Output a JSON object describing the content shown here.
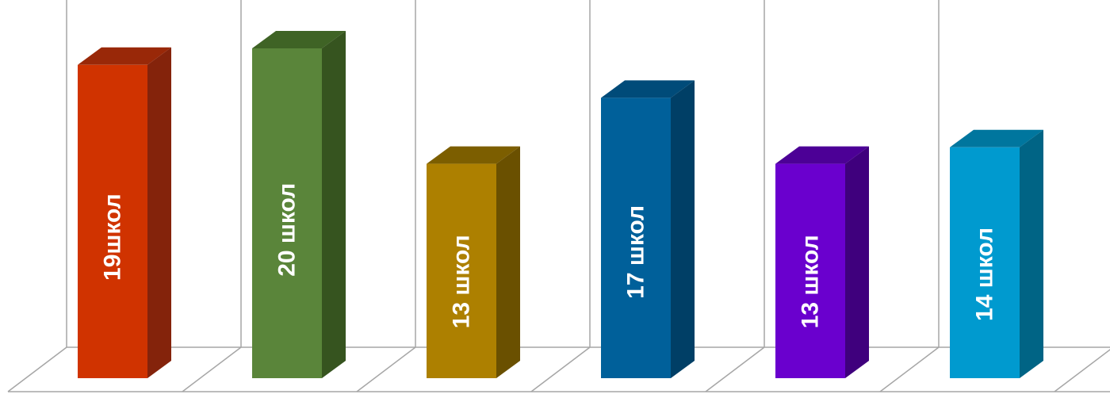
{
  "chart_data": {
    "type": "bar",
    "style": "3d-column",
    "grid": true,
    "values": [
      19,
      20,
      13,
      17,
      13,
      14
    ],
    "bar_labels": [
      "19школ",
      "20 школ",
      "13 школ",
      "17 школ",
      "13 школ",
      "14 школ"
    ],
    "colors": [
      {
        "front": "#d03300",
        "side": "#84230b",
        "top": "#992808"
      },
      {
        "front": "#5a853a",
        "side": "#36541f",
        "top": "#3f6325"
      },
      {
        "front": "#ad8000",
        "side": "#6a5000",
        "top": "#7c5e00"
      },
      {
        "front": "#00609a",
        "side": "#003f66",
        "top": "#004b79"
      },
      {
        "front": "#6a00ce",
        "side": "#3f007d",
        "top": "#4c0096"
      },
      {
        "front": "#009acf",
        "side": "#006485",
        "top": "#00769e"
      }
    ]
  }
}
